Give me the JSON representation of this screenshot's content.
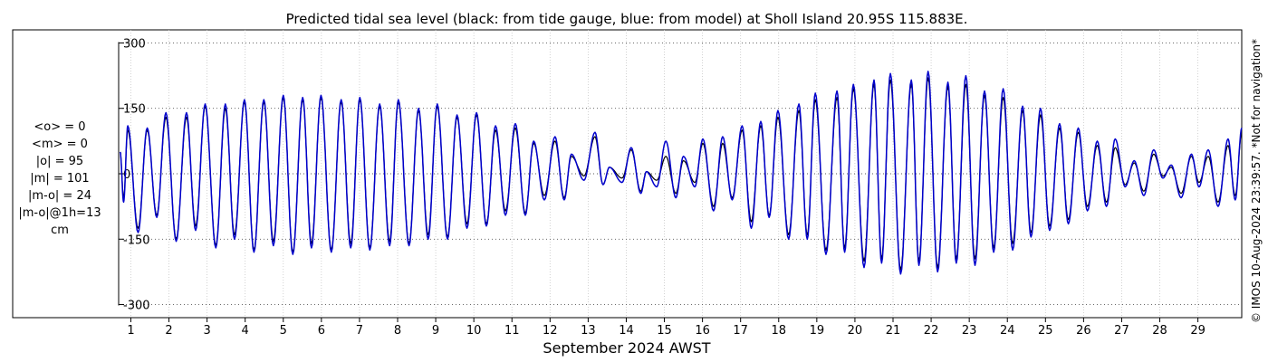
{
  "chart_data": {
    "type": "line",
    "title": "Predicted tidal sea level (black: from tide gauge, blue: from model) at Sholl Island 20.95S 115.883E.",
    "xlabel": "September 2024 AWST",
    "ylabel": "",
    "ylim": [
      -330,
      330
    ],
    "xlim": [
      0.68,
      30.15
    ],
    "y_ticks": [
      -300,
      -150,
      0,
      150,
      300
    ],
    "y_tick_labels": [
      "-300",
      "-150",
      "0",
      "150",
      "300"
    ],
    "x_ticks": [
      1,
      2,
      3,
      4,
      5,
      6,
      7,
      8,
      9,
      10,
      11,
      12,
      13,
      14,
      15,
      16,
      17,
      18,
      19,
      20,
      21,
      22,
      23,
      24,
      25,
      26,
      27,
      28,
      29
    ],
    "grid": true,
    "x_unit": "day",
    "series": [
      {
        "key": "gauge",
        "color": "#000000",
        "tidal_peaks": [
          [
            0.72,
            50
          ],
          [
            0.92,
            100
          ],
          [
            1.43,
            100
          ],
          [
            1.92,
            130
          ],
          [
            2.46,
            130
          ],
          [
            2.95,
            155
          ],
          [
            3.48,
            150
          ],
          [
            3.98,
            165
          ],
          [
            4.49,
            165
          ],
          [
            5.0,
            175
          ],
          [
            5.51,
            170
          ],
          [
            5.99,
            175
          ],
          [
            6.52,
            165
          ],
          [
            7.01,
            170
          ],
          [
            7.53,
            155
          ],
          [
            8.02,
            165
          ],
          [
            8.55,
            145
          ],
          [
            9.04,
            155
          ],
          [
            9.56,
            130
          ],
          [
            10.07,
            135
          ],
          [
            10.57,
            100
          ],
          [
            11.09,
            105
          ],
          [
            11.57,
            70
          ],
          [
            12.13,
            75
          ],
          [
            12.56,
            40
          ],
          [
            13.18,
            85
          ],
          [
            13.56,
            15
          ],
          [
            14.13,
            55
          ],
          [
            14.53,
            5
          ],
          [
            15.04,
            40
          ],
          [
            15.5,
            30
          ],
          [
            16.01,
            70
          ],
          [
            16.53,
            70
          ],
          [
            17.04,
            100
          ],
          [
            17.53,
            110
          ],
          [
            17.98,
            130
          ],
          [
            18.53,
            145
          ],
          [
            18.96,
            170
          ],
          [
            19.53,
            175
          ],
          [
            19.96,
            195
          ],
          [
            20.5,
            205
          ],
          [
            20.93,
            215
          ],
          [
            21.48,
            205
          ],
          [
            21.92,
            220
          ],
          [
            22.44,
            200
          ],
          [
            22.91,
            205
          ],
          [
            23.4,
            180
          ],
          [
            23.89,
            175
          ],
          [
            24.4,
            145
          ],
          [
            24.87,
            135
          ],
          [
            25.37,
            105
          ],
          [
            25.86,
            95
          ],
          [
            26.36,
            65
          ],
          [
            26.83,
            60
          ],
          [
            27.33,
            25
          ],
          [
            27.84,
            45
          ],
          [
            28.3,
            15
          ],
          [
            28.83,
            40
          ],
          [
            29.27,
            40
          ],
          [
            29.79,
            65
          ],
          [
            30.15,
            95
          ]
        ],
        "tidal_troughs": [
          [
            0.81,
            -55
          ],
          [
            1.19,
            -125
          ],
          [
            1.68,
            -95
          ],
          [
            2.19,
            -150
          ],
          [
            2.7,
            -120
          ],
          [
            3.23,
            -165
          ],
          [
            3.72,
            -140
          ],
          [
            4.23,
            -175
          ],
          [
            4.74,
            -155
          ],
          [
            5.25,
            -180
          ],
          [
            5.74,
            -160
          ],
          [
            6.26,
            -175
          ],
          [
            6.77,
            -160
          ],
          [
            7.27,
            -170
          ],
          [
            7.79,
            -155
          ],
          [
            8.3,
            -160
          ],
          [
            8.8,
            -140
          ],
          [
            9.31,
            -145
          ],
          [
            9.82,
            -115
          ],
          [
            10.33,
            -115
          ],
          [
            10.83,
            -85
          ],
          [
            11.35,
            -90
          ],
          [
            11.85,
            -50
          ],
          [
            12.37,
            -55
          ],
          [
            12.89,
            -5
          ],
          [
            13.39,
            -25
          ],
          [
            13.89,
            -10
          ],
          [
            14.38,
            -40
          ],
          [
            14.8,
            -15
          ],
          [
            15.3,
            -45
          ],
          [
            15.8,
            -20
          ],
          [
            16.29,
            -75
          ],
          [
            16.78,
            -55
          ],
          [
            17.28,
            -110
          ],
          [
            17.75,
            -95
          ],
          [
            18.26,
            -140
          ],
          [
            18.75,
            -140
          ],
          [
            19.24,
            -175
          ],
          [
            19.73,
            -170
          ],
          [
            20.24,
            -200
          ],
          [
            20.7,
            -195
          ],
          [
            21.2,
            -220
          ],
          [
            21.68,
            -200
          ],
          [
            22.17,
            -215
          ],
          [
            22.66,
            -195
          ],
          [
            23.15,
            -195
          ],
          [
            23.64,
            -170
          ],
          [
            24.14,
            -160
          ],
          [
            24.62,
            -135
          ],
          [
            25.11,
            -120
          ],
          [
            25.6,
            -105
          ],
          [
            26.1,
            -75
          ],
          [
            26.6,
            -65
          ],
          [
            27.09,
            -25
          ],
          [
            27.58,
            -40
          ],
          [
            28.08,
            -5
          ],
          [
            28.56,
            -45
          ],
          [
            29.03,
            -20
          ],
          [
            29.53,
            -65
          ],
          [
            29.98,
            -50
          ]
        ]
      },
      {
        "key": "model",
        "color": "#0000cc",
        "tidal_peaks": [
          [
            0.72,
            50
          ],
          [
            0.92,
            110
          ],
          [
            1.43,
            105
          ],
          [
            1.92,
            140
          ],
          [
            2.46,
            140
          ],
          [
            2.95,
            160
          ],
          [
            3.48,
            160
          ],
          [
            3.98,
            170
          ],
          [
            4.49,
            170
          ],
          [
            5.0,
            180
          ],
          [
            5.51,
            175
          ],
          [
            5.99,
            180
          ],
          [
            6.52,
            170
          ],
          [
            7.01,
            175
          ],
          [
            7.53,
            160
          ],
          [
            8.02,
            170
          ],
          [
            8.55,
            150
          ],
          [
            9.04,
            160
          ],
          [
            9.56,
            135
          ],
          [
            10.07,
            140
          ],
          [
            10.57,
            110
          ],
          [
            11.09,
            115
          ],
          [
            11.57,
            75
          ],
          [
            12.13,
            85
          ],
          [
            12.56,
            45
          ],
          [
            13.18,
            95
          ],
          [
            13.56,
            15
          ],
          [
            14.13,
            60
          ],
          [
            14.53,
            5
          ],
          [
            15.04,
            75
          ],
          [
            15.5,
            40
          ],
          [
            16.01,
            80
          ],
          [
            16.53,
            85
          ],
          [
            17.04,
            110
          ],
          [
            17.53,
            120
          ],
          [
            17.98,
            145
          ],
          [
            18.53,
            160
          ],
          [
            18.96,
            185
          ],
          [
            19.53,
            190
          ],
          [
            19.96,
            205
          ],
          [
            20.5,
            215
          ],
          [
            20.93,
            230
          ],
          [
            21.48,
            215
          ],
          [
            21.92,
            235
          ],
          [
            22.44,
            210
          ],
          [
            22.91,
            225
          ],
          [
            23.4,
            190
          ],
          [
            23.89,
            195
          ],
          [
            24.4,
            155
          ],
          [
            24.87,
            150
          ],
          [
            25.37,
            115
          ],
          [
            25.86,
            105
          ],
          [
            26.36,
            75
          ],
          [
            26.83,
            80
          ],
          [
            27.33,
            30
          ],
          [
            27.84,
            55
          ],
          [
            28.3,
            20
          ],
          [
            28.83,
            45
          ],
          [
            29.27,
            55
          ],
          [
            29.79,
            80
          ],
          [
            30.15,
            105
          ]
        ],
        "tidal_troughs": [
          [
            0.81,
            -65
          ],
          [
            1.19,
            -135
          ],
          [
            1.68,
            -100
          ],
          [
            2.19,
            -155
          ],
          [
            2.7,
            -130
          ],
          [
            3.23,
            -170
          ],
          [
            3.72,
            -150
          ],
          [
            4.23,
            -180
          ],
          [
            4.74,
            -165
          ],
          [
            5.25,
            -185
          ],
          [
            5.74,
            -170
          ],
          [
            6.26,
            -180
          ],
          [
            6.77,
            -170
          ],
          [
            7.27,
            -175
          ],
          [
            7.79,
            -165
          ],
          [
            8.3,
            -165
          ],
          [
            8.8,
            -150
          ],
          [
            9.31,
            -150
          ],
          [
            9.82,
            -125
          ],
          [
            10.33,
            -120
          ],
          [
            10.83,
            -95
          ],
          [
            11.35,
            -95
          ],
          [
            11.85,
            -60
          ],
          [
            12.37,
            -60
          ],
          [
            12.89,
            -15
          ],
          [
            13.39,
            -25
          ],
          [
            13.89,
            -20
          ],
          [
            14.38,
            -45
          ],
          [
            14.8,
            -30
          ],
          [
            15.3,
            -55
          ],
          [
            15.8,
            -30
          ],
          [
            16.29,
            -85
          ],
          [
            16.78,
            -60
          ],
          [
            17.28,
            -125
          ],
          [
            17.75,
            -100
          ],
          [
            18.26,
            -150
          ],
          [
            18.75,
            -150
          ],
          [
            19.24,
            -185
          ],
          [
            19.73,
            -180
          ],
          [
            20.24,
            -215
          ],
          [
            20.7,
            -205
          ],
          [
            21.2,
            -230
          ],
          [
            21.68,
            -210
          ],
          [
            22.17,
            -225
          ],
          [
            22.66,
            -205
          ],
          [
            23.15,
            -210
          ],
          [
            23.64,
            -180
          ],
          [
            24.14,
            -175
          ],
          [
            24.62,
            -145
          ],
          [
            25.11,
            -130
          ],
          [
            25.6,
            -115
          ],
          [
            26.1,
            -85
          ],
          [
            26.6,
            -75
          ],
          [
            27.09,
            -30
          ],
          [
            27.58,
            -50
          ],
          [
            28.08,
            -10
          ],
          [
            28.56,
            -55
          ],
          [
            29.03,
            -30
          ],
          [
            29.53,
            -75
          ],
          [
            29.98,
            -60
          ]
        ]
      }
    ]
  },
  "stats": {
    "lines": [
      "<o> = 0",
      "<m> = 0",
      "|o| = 95",
      "|m| = 101",
      "|m-o| = 24",
      "|m-o|@1h=13",
      "cm"
    ]
  },
  "side_note": "© IMOS 10-Aug-2024 23:39:57. *Not for navigation*"
}
